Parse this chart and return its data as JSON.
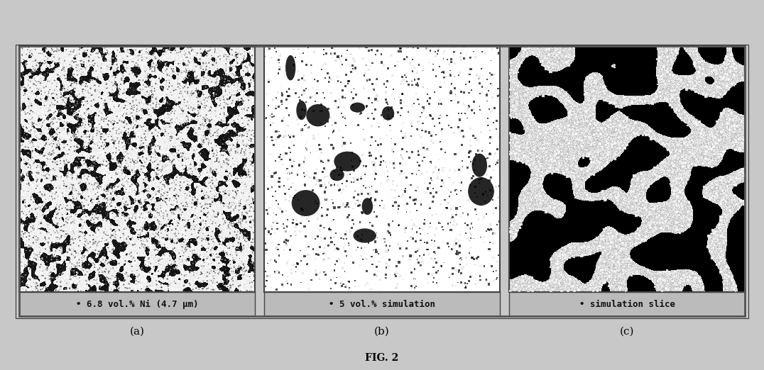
{
  "fig_width": 10.76,
  "fig_height": 5.22,
  "dpi": 100,
  "background_color": "#c8c8c8",
  "outer_frame_color": "#555555",
  "panel_labels": [
    "(a)",
    "(b)",
    "(c)"
  ],
  "caption_labels": [
    "• 6.8 vol.% Ni (4.7 μm)",
    "• 5 vol.% simulation",
    "• simulation slice"
  ],
  "caption_fontsize": 9,
  "subfig_label_fontsize": 11,
  "fig_title": "FIG. 2",
  "fig_title_fontsize": 10,
  "seed_a": 42,
  "seed_b": 123,
  "seed_c": 7,
  "panel_bg_a": "#888888",
  "panel_bg_b": "#111111",
  "panel_bg_c": "#000000",
  "caption_bg": "#bbbbbb",
  "border_color": "#444444"
}
